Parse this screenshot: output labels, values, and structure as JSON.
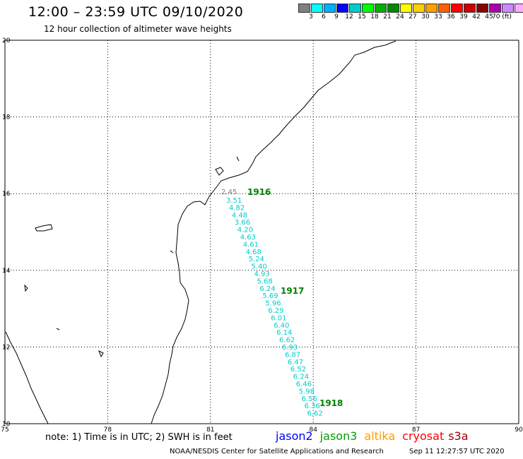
{
  "header": {
    "title": "12:00 – 23:59 UTC 09/10/2020",
    "subtitle": "12 hour collection of altimeter wave heights"
  },
  "legend": {
    "colors": [
      "#808080",
      "#00ffff",
      "#00b0ff",
      "#0000ff",
      "#00cccc",
      "#00ff00",
      "#00b000",
      "#008800",
      "#ffff00",
      "#ffd000",
      "#ffa000",
      "#ff6000",
      "#ff0000",
      "#cc0000",
      "#880000",
      "#aa00aa",
      "#cc88ff",
      "#ffaaff",
      "#000000"
    ],
    "labels": [
      "3",
      "6",
      "9",
      "12",
      "15",
      "18",
      "21",
      "24",
      "27",
      "30",
      "33",
      "36",
      "39",
      "42",
      "45",
      "70 (ft)"
    ]
  },
  "axes": {
    "lon_labels": [
      "75",
      "78",
      "81",
      "84",
      "87",
      "90"
    ],
    "lat_labels": [
      "20",
      "18",
      "16",
      "14",
      "12",
      "10"
    ]
  },
  "track": {
    "first_value": "2.45",
    "values": [
      "3.51",
      "4.82",
      "4.48",
      "3.66",
      "4.20",
      "4.63",
      "4.61",
      "4.68",
      "5.24",
      "5.40",
      "4.93",
      "5.68",
      "6.24",
      "5.69",
      "5.96",
      "6.29",
      "6.01",
      "6.40",
      "6.14",
      "6.62",
      "6.93",
      "6.87",
      "6.47",
      "6.52",
      "6.24",
      "6.46",
      "5.98",
      "6.56",
      "6.36",
      "6.62"
    ],
    "time_labels": [
      "1916",
      "1917",
      "1918"
    ],
    "value_color": "#00cccc",
    "first_value_color": "#808080",
    "time_color": "#008000"
  },
  "footer": {
    "note": "note: 1) Time is in UTC; 2) SWH is in feet",
    "satellites": [
      {
        "name": "jason2",
        "color": "#0000ff"
      },
      {
        "name": "jason3",
        "color": "#00a000"
      },
      {
        "name": "altika",
        "color": "#ff9900"
      },
      {
        "name": "cryosat",
        "color": "#ff0000"
      },
      {
        "name": "s3a",
        "color": "#990000"
      }
    ],
    "credit": "NOAA/NESDIS Center for Satellite Applications and Research",
    "timestamp": "Sep 11 12:27:57 UTC 2020"
  }
}
